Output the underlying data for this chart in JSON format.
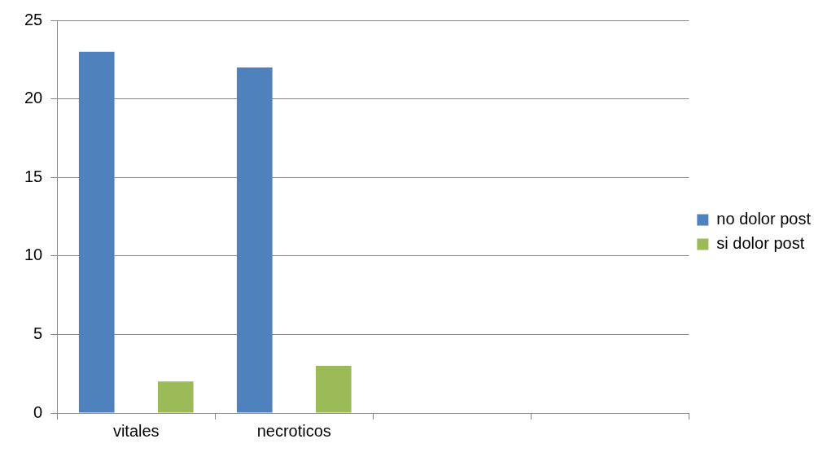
{
  "chart_data": {
    "type": "bar",
    "categories": [
      "vitales",
      "necroticos",
      null,
      null
    ],
    "series": [
      {
        "name": "no dolor post",
        "color": "#4f81bd",
        "values": [
          23,
          22,
          null,
          null
        ]
      },
      {
        "name": "si dolor post",
        "color": "#9bbb59",
        "values": [
          2,
          3,
          null,
          null
        ]
      }
    ],
    "ylim": [
      0,
      25
    ],
    "yticks": [
      0,
      5,
      10,
      15,
      20,
      25
    ],
    "grid": "y",
    "legend": "right"
  }
}
